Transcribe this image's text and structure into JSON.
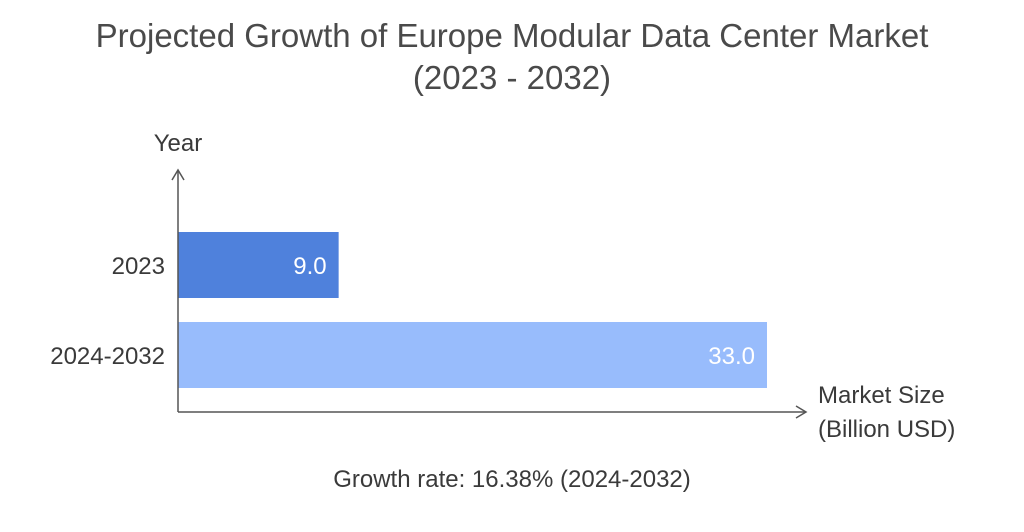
{
  "title": {
    "line1": "Projected Growth of Europe Modular Data Center Market",
    "line2": "(2023 - 2032)"
  },
  "footnote": "Growth rate: 16.38% (2024-2032)",
  "colors": {
    "bar_2023": "#4f81dc",
    "bar_2024_2032": "#98bcfc",
    "axis": "#555555",
    "text": "#3a3a3a"
  },
  "chart_data": {
    "type": "bar",
    "orientation": "horizontal",
    "ylabel": "Year",
    "xlabel_lines": [
      "Market Size",
      "(Billion USD)"
    ],
    "categories": [
      "2023",
      "2024-2032"
    ],
    "series": [
      {
        "values": [
          9.0,
          33.0
        ],
        "labels": [
          "9.0",
          "33.0"
        ],
        "colors": [
          "#4f81dc",
          "#98bcfc"
        ]
      }
    ],
    "xlim": [
      0,
      33.0
    ],
    "grid": false
  }
}
